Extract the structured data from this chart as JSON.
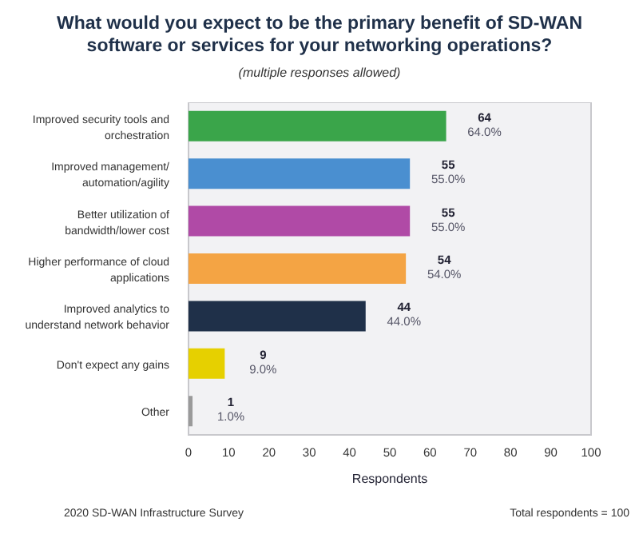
{
  "chart_data": {
    "type": "bar",
    "orientation": "horizontal",
    "title": "What would you expect to be the primary benefit of SD-WAN software or services for your networking operations?",
    "subtitle": "(multiple responses allowed)",
    "xlabel": "Respondents",
    "categories": [
      "Improved security tools and orchestration",
      "Improved management/ automation/agility",
      "Better utilization of bandwidth/lower cost",
      "Higher performance of cloud applications",
      "Improved analytics to understand network behavior",
      "Don't expect any gains",
      "Other"
    ],
    "values": [
      64,
      55,
      55,
      54,
      44,
      9,
      1
    ],
    "colors": [
      "#3aa54a",
      "#4a8fd0",
      "#b04aa6",
      "#f4a444",
      "#1f3049",
      "#e6d000",
      "#9a9a9a"
    ],
    "value_labels": [
      "64\n64.0%",
      "55\n55.0%",
      "55\n55.0%",
      "54\n54.0%",
      "44\n44.0%",
      "9\n9.0%",
      "1\n1.0%"
    ],
    "xlim": [
      0,
      100
    ],
    "xticks": [
      0,
      10,
      20,
      30,
      40,
      50,
      60,
      70,
      80,
      90,
      100
    ],
    "legend": false,
    "annotations": [
      "2020 SD-WAN Infrastructure Survey",
      "Total respondents = 100"
    ]
  }
}
